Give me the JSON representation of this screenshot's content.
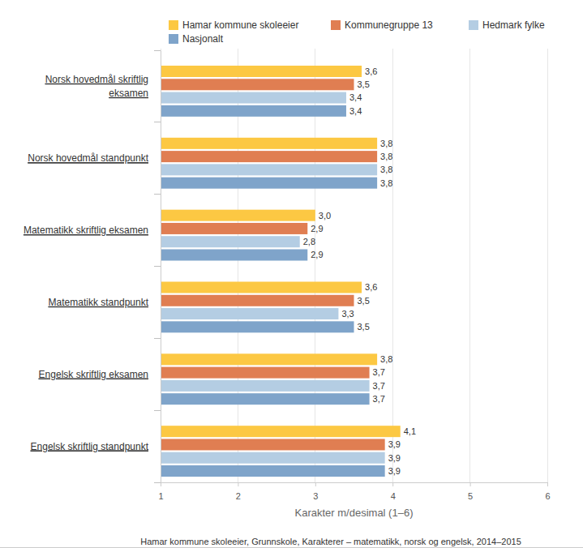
{
  "chart_data": {
    "type": "bar",
    "orientation": "horizontal",
    "xlabel": "Karakter m/desimal (1–6)",
    "caption": "Hamar kommune skoleeier, Grunnskole, Karakterer – matematikk, norsk og engelsk, 2014–2015",
    "categories": [
      "Norsk hovedmål skriftlig eksamen",
      "Norsk hovedmål standpunkt",
      "Matematikk skriftlig eksamen",
      "Matematikk standpunkt",
      "Engelsk skriftlig eksamen",
      "Engelsk skriftlig standpunkt"
    ],
    "series": [
      {
        "name": "Hamar kommune skoleeier",
        "color": "#fcc843",
        "values": [
          3.6,
          3.8,
          3.0,
          3.6,
          3.8,
          4.1
        ],
        "value_labels": [
          "3,6",
          "3,8",
          "3,0",
          "3,6",
          "3,8",
          "4,1"
        ]
      },
      {
        "name": "Kommunegruppe 13",
        "color": "#e07e52",
        "values": [
          3.5,
          3.8,
          2.9,
          3.5,
          3.7,
          3.9
        ],
        "value_labels": [
          "3,5",
          "3,8",
          "2,9",
          "3,5",
          "3,7",
          "3,9"
        ]
      },
      {
        "name": "Hedmark fylke",
        "color": "#b4cde3",
        "values": [
          3.4,
          3.8,
          2.8,
          3.3,
          3.7,
          3.9
        ],
        "value_labels": [
          "3,4",
          "3,8",
          "2,8",
          "3,3",
          "3,7",
          "3,9"
        ]
      },
      {
        "name": "Nasjonalt",
        "color": "#7fa4ca",
        "values": [
          3.4,
          3.8,
          2.9,
          3.5,
          3.7,
          3.9
        ],
        "value_labels": [
          "3,4",
          "3,8",
          "2,9",
          "3,5",
          "3,7",
          "3,9"
        ]
      }
    ],
    "xlim": [
      1,
      6
    ],
    "xticks": [
      1,
      2,
      3,
      4,
      5,
      6
    ],
    "grid": true,
    "legend": "top",
    "data_labels": true
  }
}
